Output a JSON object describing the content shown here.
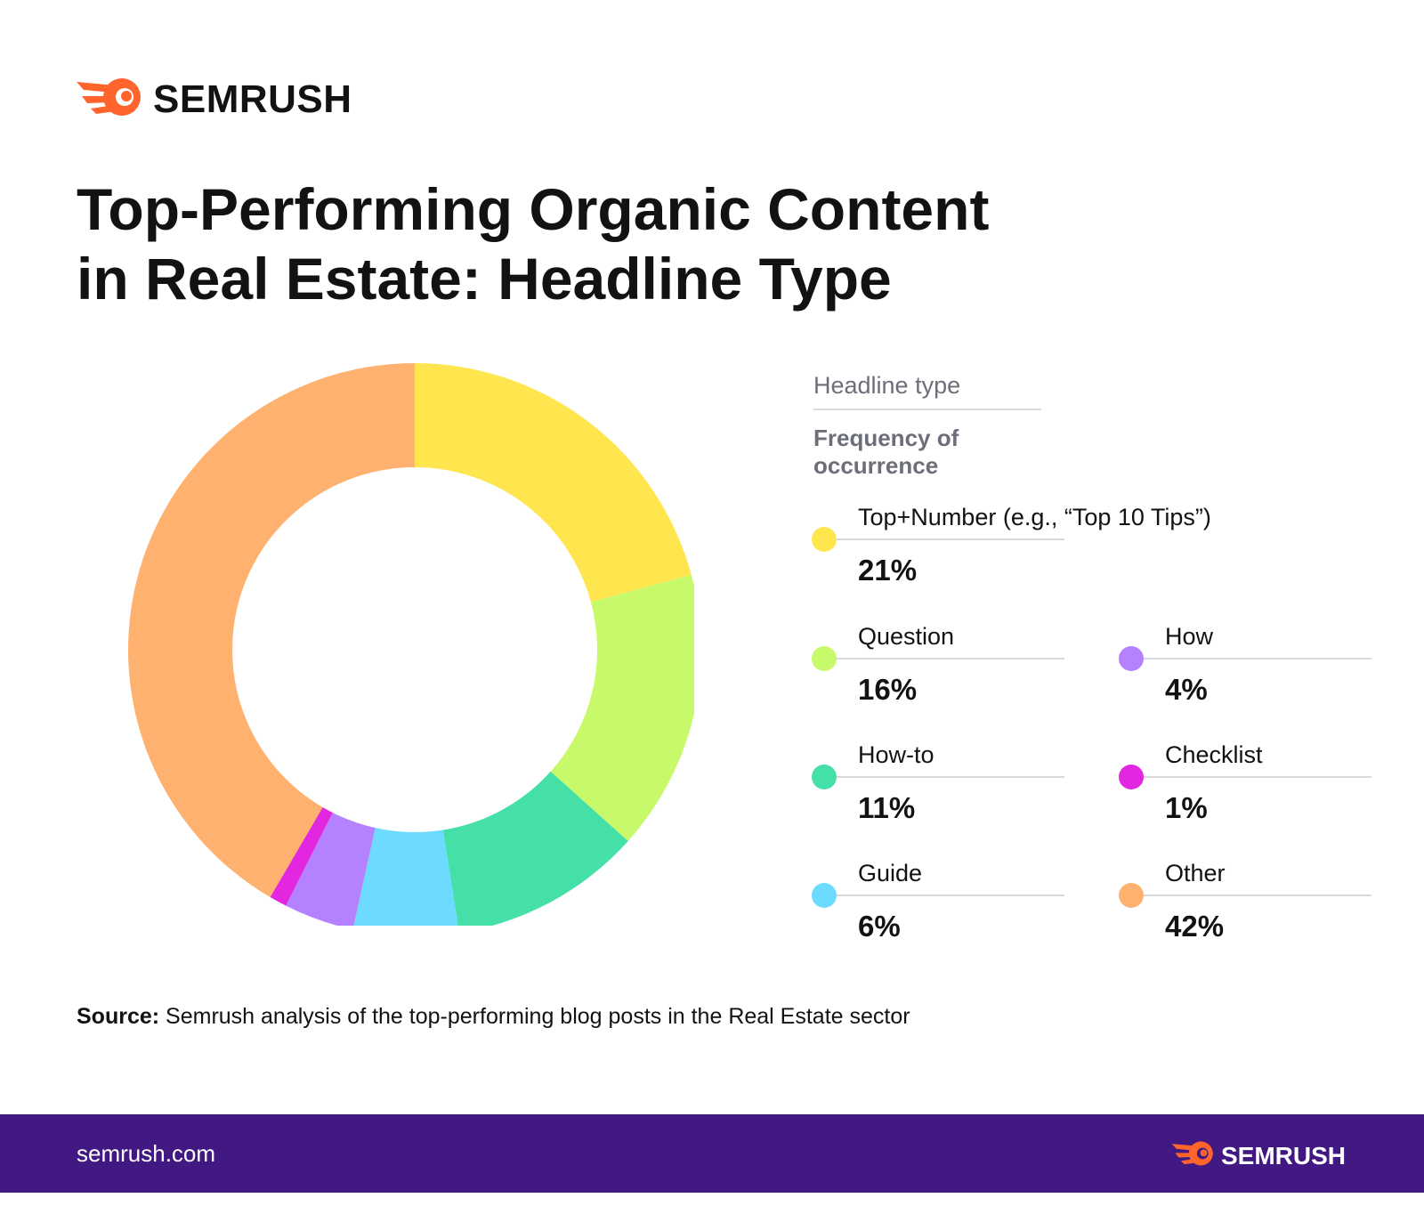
{
  "brand": {
    "name": "SEMRUSH",
    "accent_color": "#FF642D",
    "footer_color": "#421983",
    "footer_url": "semrush.com"
  },
  "title_lines": [
    "Top-Performing Organic Content",
    "in Real Estate: Headline Type"
  ],
  "legend_header": {
    "label": "Headline type",
    "sublabel": "Frequency of occurrence"
  },
  "source": {
    "prefix": "Source:",
    "text": " Semrush analysis of the top-performing blog posts in the Real Estate sector"
  },
  "chart_data": {
    "type": "pie",
    "style": "donut",
    "title": "Top-Performing Organic Content in Real Estate: Headline Type",
    "legend_title": "Headline type",
    "legend_subtitle": "Frequency of occurrence",
    "legend_position": "right",
    "unit": "%",
    "slices": [
      {
        "label": "Top+Number (e.g., “Top 10 Tips”)",
        "value": 21,
        "display": "21%",
        "color": "#FFE64F"
      },
      {
        "label": "Question",
        "value": 16,
        "display": "16%",
        "color": "#C8F96A"
      },
      {
        "label": "How-to",
        "value": 11,
        "display": "11%",
        "color": "#45E0A8"
      },
      {
        "label": "Guide",
        "value": 6,
        "display": "6%",
        "color": "#6DDAFF"
      },
      {
        "label": "How",
        "value": 4,
        "display": "4%",
        "color": "#B582FF"
      },
      {
        "label": "Checklist",
        "value": 1,
        "display": "1%",
        "color": "#E326E0"
      },
      {
        "label": "Other",
        "value": 42,
        "display": "42%",
        "color": "#FFB26F"
      }
    ]
  }
}
